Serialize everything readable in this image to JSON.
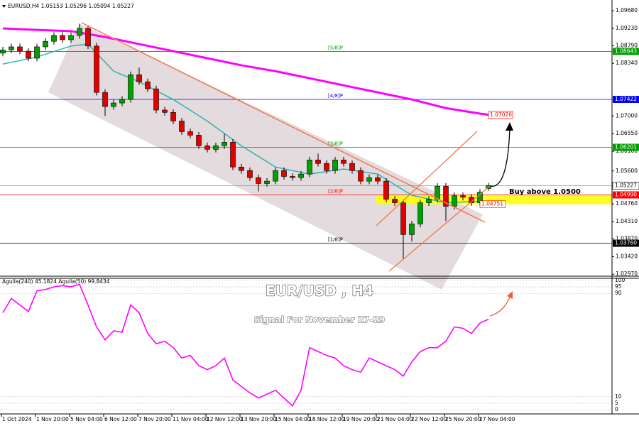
{
  "chart_data": [
    {
      "type": "candlestick",
      "header": "EURUSD,H4  1.05153 1.05296 1.05094 1.05227",
      "categories": [
        null,
        "1 Oct 2024",
        null,
        null,
        null,
        "1 Nov 20:00",
        null,
        null,
        null,
        "5 Nov 04:00",
        null,
        null,
        null,
        "6 Nov 12:00",
        null,
        null,
        null,
        "7 Nov 20:00",
        null,
        null,
        null,
        "11 Nov 04:00",
        null,
        null,
        null,
        "12 Nov 12:00",
        null,
        null,
        null,
        "13 Nov 20:00",
        null,
        null,
        null,
        "15 Nov 04:00",
        null,
        null,
        null,
        "18 Nov 12:00",
        null,
        null,
        null,
        "19 Nov 20:00",
        null,
        null,
        null,
        "21 Nov 04:00",
        null,
        null,
        null,
        "22 Nov 12:00",
        null,
        null,
        null,
        "25 Nov 20:00",
        null,
        null,
        null,
        "27 Nov 04:00"
      ],
      "open": [
        1.086,
        1.0868,
        1.0876,
        1.0865,
        1.0847,
        1.0876,
        1.089,
        1.0905,
        1.0894,
        1.0905,
        1.0923,
        1.0878,
        1.076,
        1.0724,
        1.0733,
        1.0742,
        1.0805,
        1.0787,
        1.0769,
        1.0715,
        1.0709,
        1.0687,
        1.066,
        1.0651,
        1.0624,
        1.0615,
        1.0624,
        1.0633,
        1.057,
        1.0561,
        1.0543,
        1.0528,
        1.0534,
        1.0561,
        1.0546,
        1.0543,
        1.0552,
        1.0588,
        1.0579,
        1.0561,
        1.0588,
        1.0579,
        1.0561,
        1.0534,
        1.0543,
        1.0534,
        1.0488,
        1.0479,
        1.0398,
        1.0425,
        1.0479,
        1.0488,
        1.0521,
        1.047,
        1.0497,
        1.0493,
        1.0479,
        1.05153
      ],
      "high": [
        1.0876,
        1.0884,
        1.0884,
        1.0873,
        1.0884,
        1.0898,
        1.0913,
        1.0913,
        1.0913,
        1.0935,
        1.0931,
        1.0886,
        1.0768,
        1.0741,
        1.075,
        1.0813,
        1.0823,
        1.0795,
        1.0777,
        1.0723,
        1.0717,
        1.0695,
        1.0668,
        1.0659,
        1.0632,
        1.0632,
        1.0654,
        1.0641,
        1.0578,
        1.0569,
        1.0551,
        1.0542,
        1.0569,
        1.0569,
        1.0554,
        1.056,
        1.0596,
        1.0604,
        1.0587,
        1.0596,
        1.0596,
        1.0587,
        1.0569,
        1.0551,
        1.0551,
        1.0542,
        1.0496,
        1.0487,
        1.0433,
        1.0487,
        1.0496,
        1.0529,
        1.0529,
        1.0505,
        1.0505,
        1.0501,
        1.0514,
        1.05296
      ],
      "low": [
        1.0852,
        1.086,
        1.0857,
        1.0839,
        1.0839,
        1.0868,
        1.0882,
        1.0886,
        1.0886,
        1.0897,
        1.087,
        1.0752,
        1.07,
        1.0716,
        1.0725,
        1.0734,
        1.0779,
        1.0761,
        1.0707,
        1.0701,
        1.0679,
        1.0652,
        1.0643,
        1.0616,
        1.0607,
        1.0607,
        1.0616,
        1.0562,
        1.0553,
        1.0535,
        1.0508,
        1.052,
        1.0526,
        1.0538,
        1.0535,
        1.0535,
        1.0544,
        1.0571,
        1.0553,
        1.0553,
        1.0571,
        1.0553,
        1.0526,
        1.0526,
        1.0526,
        1.048,
        1.0471,
        1.0335,
        1.038,
        1.0417,
        1.0471,
        1.048,
        1.0432,
        1.0462,
        1.0485,
        1.0471,
        1.0471,
        1.05094
      ],
      "close": [
        1.0868,
        1.0876,
        1.0865,
        1.0847,
        1.0876,
        1.089,
        1.0905,
        1.0894,
        1.0905,
        1.0923,
        1.0878,
        1.076,
        1.0724,
        1.0733,
        1.0742,
        1.0805,
        1.0787,
        1.0769,
        1.0715,
        1.0709,
        1.0687,
        1.066,
        1.0651,
        1.0624,
        1.0615,
        1.0624,
        1.0633,
        1.057,
        1.0561,
        1.0543,
        1.0528,
        1.0534,
        1.0561,
        1.0546,
        1.0543,
        1.0552,
        1.0588,
        1.0579,
        1.0561,
        1.0588,
        1.0579,
        1.0561,
        1.0534,
        1.0543,
        1.0534,
        1.0488,
        1.0479,
        1.0398,
        1.0425,
        1.0479,
        1.0488,
        1.0521,
        1.047,
        1.0497,
        1.0493,
        1.0479,
        1.0506,
        1.05227
      ],
      "up_color": "#00a000",
      "down_color": "#e00000",
      "ylim": [
        1.0292,
        1.0988
      ],
      "yticks": [
        {
          "value": 1.0968,
          "label": "1.09680"
        },
        {
          "value": 1.0923,
          "label": "1.09230"
        },
        {
          "value": 1.0879,
          "label": "1.08790"
        },
        {
          "value": 1.0834,
          "label": "1.08340"
        },
        {
          "value": 1.07,
          "label": "1.07000"
        },
        {
          "value": 1.0655,
          "label": "1.06550"
        },
        {
          "value": 1.061,
          "label": "1.06100"
        },
        {
          "value": 1.056,
          "label": "1.05600"
        },
        {
          "value": 1.0476,
          "label": "1.04760"
        },
        {
          "value": 1.0431,
          "label": "1.04310"
        },
        {
          "value": 1.0387,
          "label": "1.03870"
        },
        {
          "value": 1.0342,
          "label": "1.03420"
        },
        {
          "value": 1.0297,
          "label": "1.02970"
        }
      ],
      "moving_averages": [
        {
          "color": "#ff00ff",
          "x": [
            0,
            4,
            8,
            12,
            16,
            20,
            24,
            28,
            32,
            36,
            40,
            44,
            48,
            52,
            56,
            57
          ],
          "values": [
            1.0923,
            1.0919,
            1.0916,
            1.0901,
            1.0883,
            1.0865,
            1.0847,
            1.0829,
            1.0814,
            1.0796,
            1.0778,
            1.076,
            1.0742,
            1.072,
            1.0706,
            1.0703
          ]
        },
        {
          "color": "#2bb5b0",
          "x": [
            0,
            4,
            8,
            10,
            13,
            16,
            20,
            24,
            28,
            32,
            36,
            40,
            44,
            48,
            52,
            56
          ],
          "values": [
            1.0832,
            1.085,
            1.0878,
            1.0883,
            1.0814,
            1.0787,
            1.0742,
            1.0687,
            1.0624,
            1.057,
            1.0552,
            1.0565,
            1.0552,
            1.0498,
            1.0479,
            1.0483
          ]
        }
      ],
      "levels": [
        {
          "name": "[5/8]P",
          "value": 1.08643,
          "color": "#00a000"
        },
        {
          "name": "[4/8]P",
          "value": 1.07422,
          "color": "#0000ff"
        },
        {
          "name": "[3/8]P",
          "value": 1.06201,
          "color": "#00a000"
        },
        {
          "name": "[2/8]P",
          "value": {
            "value": 1.0499,
            "label": "1.04990"
          },
          "color": "#ff0000"
        },
        {
          "name": "[1/8]P",
          "value": {
            "value": 1.0376,
            "label": "1.03760"
          },
          "color": "#000000"
        }
      ],
      "price_line": {
        "value": 1.05227,
        "color": "#9a9a9a"
      },
      "zone": {
        "low": 1.04751,
        "high": 1.0499,
        "color": "#ffff00"
      },
      "target": {
        "value": 1.07026,
        "color": "#ff0000"
      },
      "buy_note": "Buy above 1.0500"
    },
    {
      "type": "line",
      "header": "Aguila(240) 45.1824 Aguila(50) 99.8434",
      "title": "EUR/USD , H4",
      "subtitle": "Signal For November 27-29",
      "color": "#ff00ff",
      "values": [
        75,
        86,
        81,
        76,
        92,
        93,
        95,
        96,
        95,
        97,
        81,
        64,
        54,
        61,
        60,
        81,
        75,
        59,
        51,
        53,
        48,
        40,
        42,
        34,
        31,
        34,
        40,
        23,
        18,
        13,
        9,
        12,
        15,
        9,
        3,
        15,
        48,
        45,
        42,
        40,
        34,
        31,
        29,
        40,
        37,
        34,
        31,
        26,
        37,
        45,
        48,
        48,
        53,
        64,
        63,
        59,
        67,
        70
      ],
      "ylim": [
        0,
        100
      ],
      "yticks": [
        100,
        95,
        90,
        10,
        5,
        0
      ]
    }
  ]
}
